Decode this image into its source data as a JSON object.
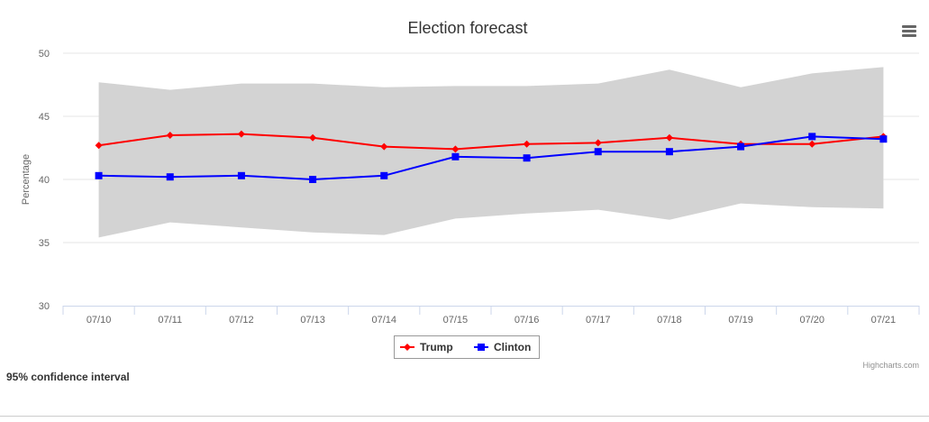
{
  "chart_data": {
    "type": "line",
    "title": "Election forecast",
    "ylabel": "Percentage",
    "xlabel": "",
    "ylim": [
      30,
      50
    ],
    "yticks": [
      30,
      35,
      40,
      45,
      50
    ],
    "categories": [
      "07/10",
      "07/11",
      "07/12",
      "07/13",
      "07/14",
      "07/15",
      "07/16",
      "07/17",
      "07/18",
      "07/19",
      "07/20",
      "07/21"
    ],
    "series": [
      {
        "name": "Trump",
        "color": "#ff0000",
        "marker": "diamond",
        "values": [
          42.7,
          43.5,
          43.6,
          43.3,
          42.6,
          42.4,
          42.8,
          42.9,
          43.3,
          42.8,
          42.8,
          43.4
        ]
      },
      {
        "name": "Clinton",
        "color": "#0000ff",
        "marker": "square",
        "values": [
          40.3,
          40.2,
          40.3,
          40.0,
          40.3,
          41.8,
          41.7,
          42.2,
          42.2,
          42.6,
          43.4,
          43.2
        ]
      }
    ],
    "confidence_band": {
      "color": "#d3d3d3",
      "upper": [
        47.7,
        47.1,
        47.6,
        47.6,
        47.3,
        47.4,
        47.4,
        47.6,
        48.7,
        47.3,
        48.4,
        48.9
      ],
      "lower": [
        35.4,
        36.6,
        36.2,
        35.8,
        35.6,
        36.9,
        37.3,
        37.6,
        36.8,
        38.1,
        37.8,
        37.7
      ]
    },
    "legend_position": "bottom-center",
    "grid": true
  },
  "menu_icon": "hamburger-menu-icon",
  "credits": "Highcharts.com",
  "caption": "95% confidence interval"
}
